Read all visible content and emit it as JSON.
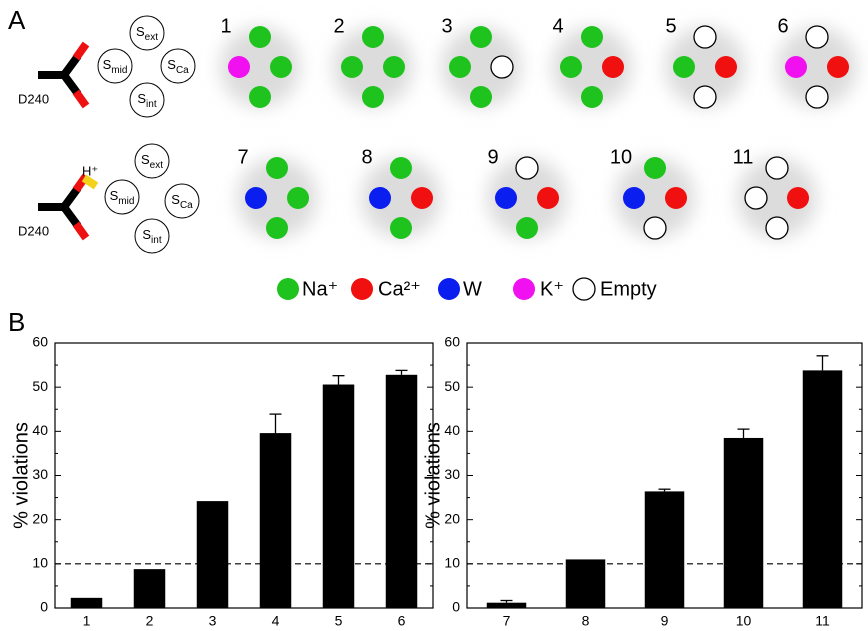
{
  "panel_a": {
    "label": "A",
    "residue": "D240",
    "proton": "H⁺",
    "sites": [
      {
        "symbol": "S",
        "subscript": "ext"
      },
      {
        "symbol": "S",
        "subscript": "mid"
      },
      {
        "symbol": "S",
        "subscript": "Ca"
      },
      {
        "symbol": "S",
        "subscript": "int"
      }
    ],
    "ions": [
      {
        "name": "Na⁺",
        "color": "#1ec31e"
      },
      {
        "name": "Ca²⁺",
        "color": "#f01010"
      },
      {
        "name": "W",
        "color": "#0a1ef0"
      },
      {
        "name": "K⁺",
        "color": "#f010f0"
      },
      {
        "name": "Empty",
        "color": "#ffffff"
      }
    ],
    "states": [
      {
        "label": "1",
        "sites": [
          0,
          3,
          0,
          0
        ]
      },
      {
        "label": "2",
        "sites": [
          0,
          0,
          0,
          0
        ]
      },
      {
        "label": "3",
        "sites": [
          0,
          0,
          4,
          0
        ]
      },
      {
        "label": "4",
        "sites": [
          0,
          0,
          1,
          0
        ]
      },
      {
        "label": "5",
        "sites": [
          4,
          0,
          1,
          4
        ]
      },
      {
        "label": "6",
        "sites": [
          4,
          3,
          1,
          4
        ]
      },
      {
        "label": "7",
        "sites": [
          0,
          2,
          0,
          0
        ]
      },
      {
        "label": "8",
        "sites": [
          0,
          2,
          1,
          0
        ]
      },
      {
        "label": "9",
        "sites": [
          4,
          2,
          1,
          0
        ]
      },
      {
        "label": "10",
        "sites": [
          0,
          2,
          1,
          4
        ]
      },
      {
        "label": "11",
        "sites": [
          4,
          4,
          1,
          4
        ]
      }
    ]
  },
  "panel_b_label": "B",
  "chart_data": [
    {
      "type": "bar",
      "y_label": "% violations",
      "categories": [
        "1",
        "2",
        "3",
        "4",
        "5",
        "6"
      ],
      "values": [
        2.3,
        8.8,
        24.2,
        39.6,
        50.6,
        52.8
      ],
      "errors": [
        null,
        null,
        null,
        4.3,
        2.0,
        1.0
      ],
      "color": "#000000",
      "ylim": [
        0,
        60
      ],
      "yticks": [
        0,
        10,
        20,
        30,
        40,
        50,
        60
      ],
      "reference_line": 10
    },
    {
      "type": "bar",
      "y_label": "% violations",
      "categories": [
        "7",
        "8",
        "9",
        "10",
        "11"
      ],
      "values": [
        1.2,
        11.0,
        26.4,
        38.5,
        53.8
      ],
      "errors": [
        0.5,
        null,
        0.5,
        2.0,
        3.3
      ],
      "color": "#000000",
      "ylim": [
        0,
        60
      ],
      "yticks": [
        0,
        10,
        20,
        30,
        40,
        50,
        60
      ],
      "reference_line": 10
    }
  ]
}
